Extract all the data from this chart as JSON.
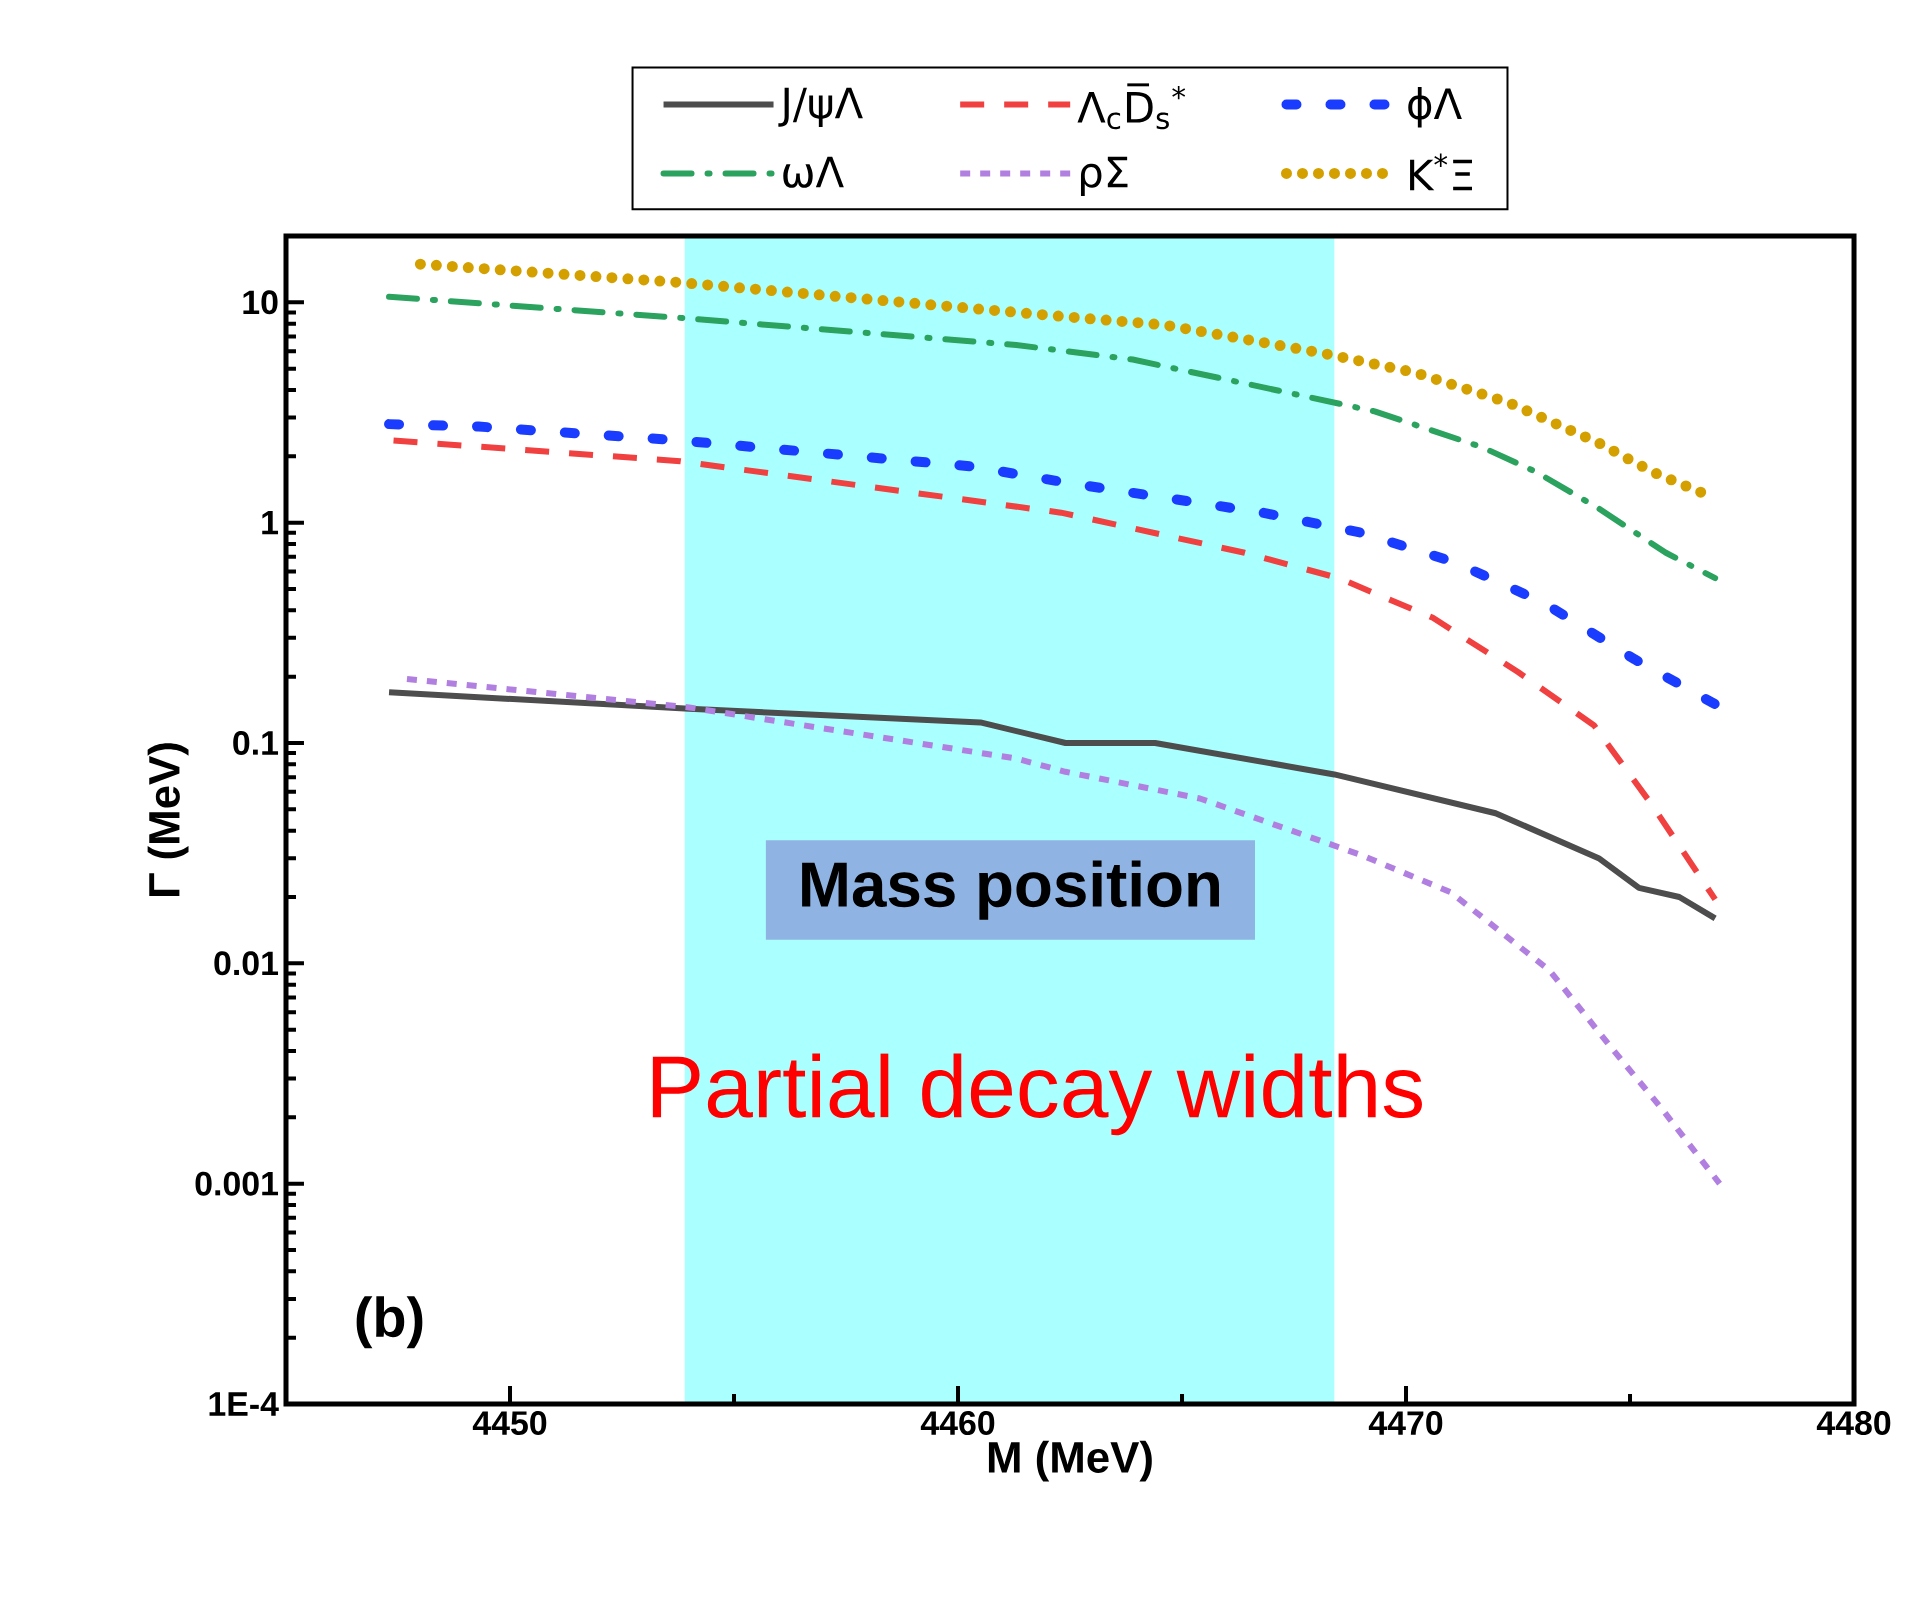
{
  "chart_data": {
    "type": "line",
    "xlabel": "M (MeV)",
    "ylabel": "Γ (MeV)",
    "log": "y",
    "xlim": [
      4445,
      4480
    ],
    "xticks": [
      4450,
      4460,
      4470,
      4480
    ],
    "ylim": [
      0.0001,
      20
    ],
    "yticks": [
      {
        "value": 0.0001,
        "label": "1E-4"
      },
      {
        "value": 0.001,
        "label": "0.001"
      },
      {
        "value": 0.01,
        "label": "0.01"
      },
      {
        "value": 0.1,
        "label": "0.1"
      },
      {
        "value": 1,
        "label": "1"
      },
      {
        "value": 10,
        "label": "10"
      }
    ],
    "legend": "top",
    "bands": [
      {
        "axis": "x",
        "from": 4453.9,
        "to": 4468.4,
        "label": "Mass position",
        "color": "#aaffff"
      }
    ],
    "annotations": [
      "(b)",
      "Partial decay widths"
    ],
    "series": [
      {
        "name": "J/ψΛ",
        "color": "#4d4d4d",
        "line_style": "solid",
        "x": [
          4447.3,
          4454.0,
          4460.5,
          4462.4,
          4464.4,
          4468.4,
          4472.0,
          4474.3,
          4475.2,
          4476.1,
          4476.9
        ],
        "values": [
          0.17,
          0.143,
          0.124,
          0.1,
          0.1,
          0.072,
          0.048,
          0.03,
          0.022,
          0.02,
          0.016
        ]
      },
      {
        "name": "Λ$_{c}$D̅$_{s}$$^{*}$",
        "color": "#f04040",
        "line_style": "dashed",
        "x": [
          4447.4,
          4453.8,
          4462.3,
          4466.4,
          4468.5,
          4470.6,
          4472.5,
          4474.2,
          4475.5,
          4476.9
        ],
        "values": [
          2.36,
          1.9,
          1.11,
          0.73,
          0.56,
          0.37,
          0.21,
          0.12,
          0.052,
          0.0195
        ]
      },
      {
        "name": "ϕΛ",
        "color": "#1a3cff",
        "line_style": "loosely dashed",
        "x": [
          4447.3,
          4449.3,
          4453.8,
          4460.3,
          4462.5,
          4466.8,
          4469.0,
          4471.1,
          4473.1,
          4475.1,
          4476.9
        ],
        "values": [
          2.8,
          2.73,
          2.36,
          1.8,
          1.51,
          1.11,
          0.9,
          0.66,
          0.43,
          0.24,
          0.15
        ]
      },
      {
        "name": "ωΛ",
        "color": "#2ca25f",
        "line_style": "dashdot",
        "x": [
          4447.3,
          4453.8,
          4461.3,
          4463.9,
          4467.6,
          4469.3,
          4471.7,
          4472.9,
          4474.3,
          4475.8,
          4476.9
        ],
        "values": [
          10.6,
          8.5,
          6.4,
          5.5,
          3.8,
          3.2,
          2.2,
          1.7,
          1.16,
          0.73,
          0.56
        ]
      },
      {
        "name": "ρΣ",
        "color": "#b07fe0",
        "line_style": "densely dashed",
        "x": [
          4447.7,
          4454.0,
          4461.3,
          4462.4,
          4465.4,
          4469.0,
          4471.0,
          4473.2,
          4474.6,
          4475.7,
          4477.0
        ],
        "values": [
          0.195,
          0.145,
          0.085,
          0.074,
          0.056,
          0.031,
          0.021,
          0.0093,
          0.0041,
          0.0022,
          0.001
        ]
      },
      {
        "name": "K$^{*}$Ξ",
        "color": "#d4a000",
        "line_style": "dotted",
        "x": [
          4448.0,
          4453.8,
          4462.4,
          4464.6,
          4468.1,
          4470.2,
          4472.3,
          4474.3,
          4475.5,
          4476.9
        ],
        "values": [
          14.9,
          12.3,
          8.6,
          7.9,
          5.9,
          4.8,
          3.5,
          2.3,
          1.7,
          1.29
        ]
      }
    ]
  }
}
